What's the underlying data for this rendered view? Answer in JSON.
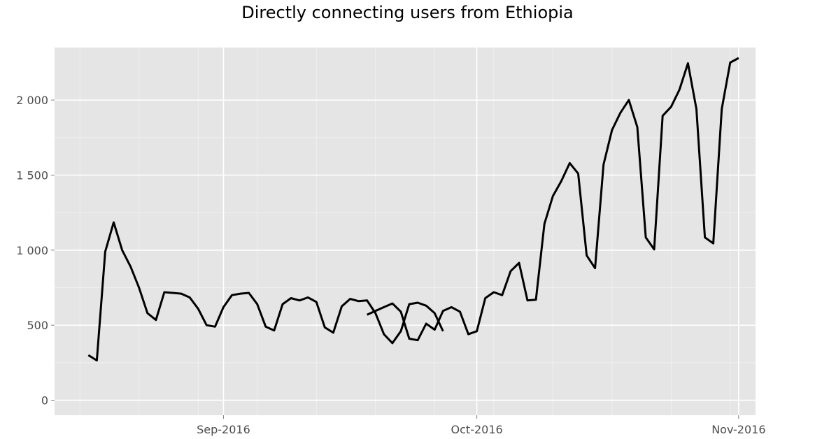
{
  "chart_data": {
    "type": "line",
    "title": "Directly connecting users from Ethiopia",
    "xlabel": "",
    "ylabel": "",
    "ylim": [
      -100,
      2350
    ],
    "xlim": [
      "2016-08-12",
      "2016-11-03"
    ],
    "grid": true,
    "x_ticks": [
      {
        "date": "2016-09-01",
        "label": "Sep-2016"
      },
      {
        "date": "2016-10-01",
        "label": "Oct-2016"
      },
      {
        "date": "2016-11-01",
        "label": "Nov-2016"
      }
    ],
    "y_ticks": [
      {
        "value": 0,
        "label": "0"
      },
      {
        "value": 500,
        "label": "500"
      },
      {
        "value": 1000,
        "label": "1 000"
      },
      {
        "value": 1500,
        "label": "1 500"
      },
      {
        "value": 2000,
        "label": "2 000"
      }
    ],
    "series": [
      {
        "color": "#000000",
        "segments": [
          {
            "start_date": "2016-08-16",
            "values": [
              300,
              265,
              990,
              1185,
              1000,
              890,
              750,
              580,
              535,
              720,
              715,
              710,
              685,
              610,
              500,
              490,
              620,
              700,
              710,
              715,
              640,
              490,
              465,
              640,
              680,
              665,
              685,
              655,
              485,
              450,
              625,
              675,
              660,
              665,
              580,
              440,
              380,
              460,
              640,
              650,
              630,
              580,
              460
            ]
          },
          {
            "start_date": "2016-09-18",
            "values": [
              570,
              595,
              620,
              645,
              590,
              410,
              400,
              510,
              470,
              595,
              620,
              590,
              440,
              460,
              680,
              720,
              700,
              860,
              915,
              665,
              670,
              1175,
              1360,
              1460,
              1580,
              1510,
              965,
              880,
              1570,
              1800,
              1915,
              2000,
              1820,
              1085,
              1005,
              1895,
              1955,
              2070,
              2245,
              1940,
              1085,
              1045,
              1940,
              2250,
              2280
            ]
          }
        ]
      }
    ]
  }
}
